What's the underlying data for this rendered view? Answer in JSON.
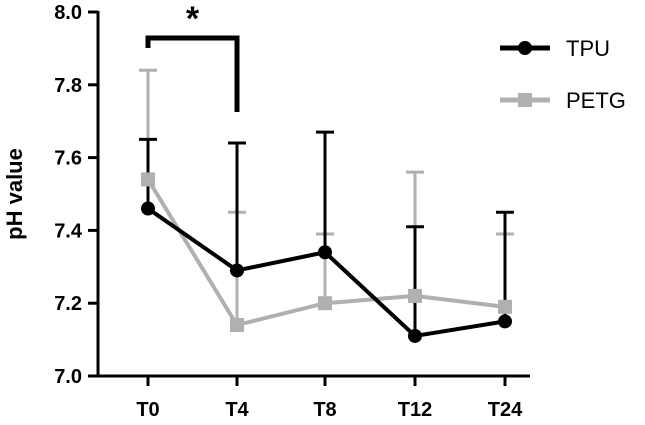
{
  "chart_data": {
    "type": "line",
    "ylabel": "pH value",
    "xlabel": "",
    "categories": [
      "T0",
      "T4",
      "T8",
      "T12",
      "T24"
    ],
    "ylim": [
      7.0,
      8.0
    ],
    "yticks": [
      "7.0",
      "7.2",
      "7.4",
      "7.6",
      "7.8",
      "8.0"
    ],
    "grid": false,
    "legend_position": "top-right",
    "series": [
      {
        "name": "TPU",
        "color": "#000000",
        "marker": "circle",
        "values": [
          7.46,
          7.29,
          7.34,
          7.11,
          7.15
        ],
        "error_upper": [
          7.65,
          7.64,
          7.67,
          7.41,
          7.45
        ]
      },
      {
        "name": "PETG",
        "color": "#b0b0b0",
        "marker": "square",
        "values": [
          7.54,
          7.14,
          7.2,
          7.22,
          7.19
        ],
        "error_upper": [
          7.84,
          7.45,
          7.39,
          7.56,
          7.39
        ]
      }
    ],
    "annotations": [
      {
        "type": "significance-bracket",
        "from": "T0",
        "to": "T4",
        "label": "*"
      }
    ]
  }
}
